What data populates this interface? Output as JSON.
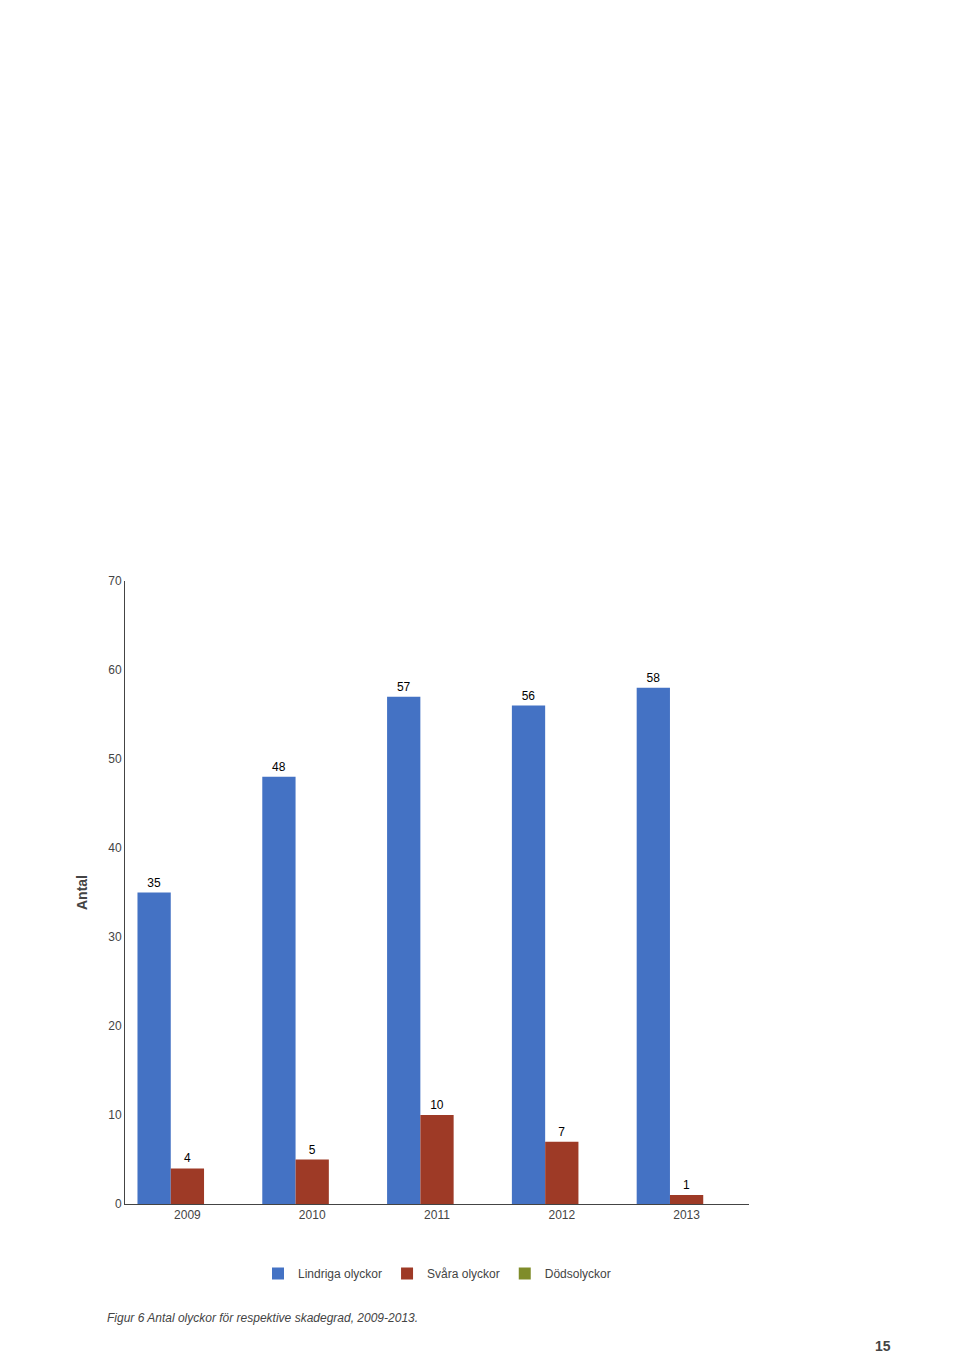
{
  "chart_data": {
    "type": "bar",
    "ylabel": "Antal",
    "categories": [
      "2009",
      "2010",
      "2011",
      "2012",
      "2013"
    ],
    "series": [
      {
        "name": "Lindriga olyckor",
        "color": "#4472C4",
        "values": [
          35,
          48,
          57,
          56,
          58
        ],
        "data_labels": true
      },
      {
        "name": "Svåra olyckor",
        "color": "#9E3A26",
        "values": [
          4,
          5,
          10,
          7,
          1
        ],
        "data_labels": true
      },
      {
        "name": "Dödsolyckor",
        "color": "#7F8C2A",
        "values": [
          0,
          0,
          0,
          0,
          0
        ],
        "data_labels": false
      }
    ],
    "ylim": [
      0,
      70
    ],
    "yticks": [
      0,
      10,
      20,
      30,
      40,
      50,
      60,
      70
    ],
    "grid": false,
    "legend": "bottom",
    "annotations": [
      "Figur 6 Antal olyckor för respektive skadegrad, 2009-2013.",
      "15"
    ]
  }
}
